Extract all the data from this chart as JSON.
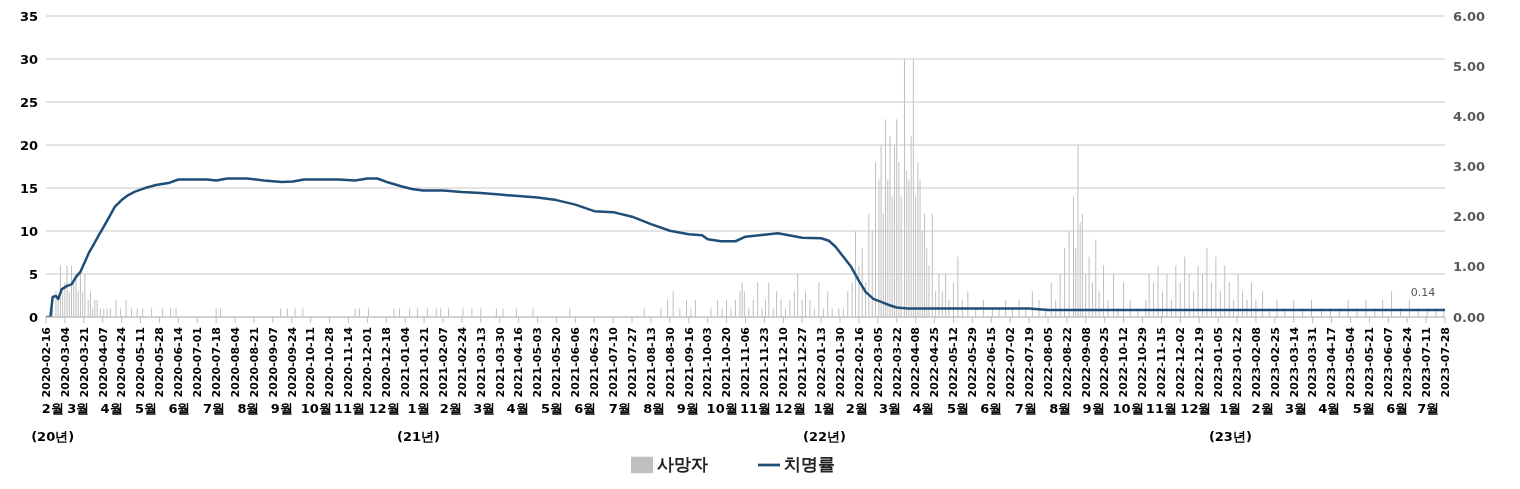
{
  "chart_data": {
    "type": "bar",
    "xlim": [
      "2020-02-16",
      "2023-07-28"
    ],
    "xticks": [
      "2020-02-16",
      "2020-03-04",
      "2020-03-21",
      "2020-04-07",
      "2020-04-24",
      "2020-05-11",
      "2020-05-28",
      "2020-06-14",
      "2020-07-01",
      "2020-07-18",
      "2020-08-04",
      "2020-08-21",
      "2020-09-07",
      "2020-09-24",
      "2020-10-11",
      "2020-10-28",
      "2020-11-14",
      "2020-12-01",
      "2020-12-18",
      "2021-01-04",
      "2021-01-21",
      "2021-02-07",
      "2021-02-24",
      "2021-03-13",
      "2021-03-30",
      "2021-04-16",
      "2021-05-03",
      "2021-05-20",
      "2021-06-06",
      "2021-06-23",
      "2021-07-10",
      "2021-07-27",
      "2021-08-13",
      "2021-08-30",
      "2021-09-16",
      "2021-10-03",
      "2021-10-20",
      "2021-11-06",
      "2021-11-23",
      "2021-12-10",
      "2021-12-27",
      "2022-01-13",
      "2022-01-30",
      "2022-02-16",
      "2022-03-05",
      "2022-03-22",
      "2022-04-08",
      "2022-04-25",
      "2022-05-12",
      "2022-05-29",
      "2022-06-15",
      "2022-07-02",
      "2022-07-19",
      "2022-08-05",
      "2022-08-22",
      "2022-09-08",
      "2022-09-25",
      "2022-10-12",
      "2022-10-29",
      "2022-11-15",
      "2022-12-02",
      "2022-12-19",
      "2023-01-05",
      "2023-01-22",
      "2023-02-08",
      "2023-02-25",
      "2023-03-14",
      "2023-03-31",
      "2023-04-17",
      "2023-05-04",
      "2023-05-21",
      "2023-06-07",
      "2023-06-24",
      "2023-07-11",
      "2023-07-28"
    ],
    "x2lim": [
      "2020-02-16",
      "2023-07-28"
    ],
    "x2ticks": [
      {
        "value": "2020-02-22",
        "label": "2월\n(20년)"
      },
      {
        "value": "2020-03-16",
        "label": "3월"
      },
      {
        "value": "2020-04-15",
        "label": "4월"
      },
      {
        "value": "2020-05-16",
        "label": "5월"
      },
      {
        "value": "2020-06-15",
        "label": "6월"
      },
      {
        "value": "2020-07-16",
        "label": "7월"
      },
      {
        "value": "2020-08-16",
        "label": "8월"
      },
      {
        "value": "2020-09-15",
        "label": "9월"
      },
      {
        "value": "2020-10-16",
        "label": "10월"
      },
      {
        "value": "2020-11-15",
        "label": "11월"
      },
      {
        "value": "2020-12-16",
        "label": "12월"
      },
      {
        "value": "2021-01-16",
        "label": "1월\n(21년)"
      },
      {
        "value": "2021-02-14",
        "label": "2월"
      },
      {
        "value": "2021-03-16",
        "label": "3월"
      },
      {
        "value": "2021-04-15",
        "label": "4월"
      },
      {
        "value": "2021-05-16",
        "label": "5월"
      },
      {
        "value": "2021-06-15",
        "label": "6월"
      },
      {
        "value": "2021-07-16",
        "label": "7월"
      },
      {
        "value": "2021-08-16",
        "label": "8월"
      },
      {
        "value": "2021-09-15",
        "label": "9월"
      },
      {
        "value": "2021-10-16",
        "label": "10월"
      },
      {
        "value": "2021-11-15",
        "label": "11월"
      },
      {
        "value": "2021-12-16",
        "label": "12월"
      },
      {
        "value": "2022-01-16",
        "label": "1월\n(22년)"
      },
      {
        "value": "2022-02-14",
        "label": "2월"
      },
      {
        "value": "2022-03-16",
        "label": "3월"
      },
      {
        "value": "2022-04-15",
        "label": "4월"
      },
      {
        "value": "2022-05-16",
        "label": "5월"
      },
      {
        "value": "2022-06-15",
        "label": "6월"
      },
      {
        "value": "2022-07-16",
        "label": "7월"
      },
      {
        "value": "2022-08-16",
        "label": "8월"
      },
      {
        "value": "2022-09-15",
        "label": "9월"
      },
      {
        "value": "2022-10-16",
        "label": "10월"
      },
      {
        "value": "2022-11-15",
        "label": "11월"
      },
      {
        "value": "2022-12-16",
        "label": "12월"
      },
      {
        "value": "2023-01-16",
        "label": "1월\n(23년)"
      },
      {
        "value": "2023-02-14",
        "label": "2월"
      },
      {
        "value": "2023-03-16",
        "label": "3월"
      },
      {
        "value": "2023-04-15",
        "label": "4월"
      },
      {
        "value": "2023-05-16",
        "label": "5월"
      },
      {
        "value": "2023-06-15",
        "label": "6월"
      },
      {
        "value": "2023-07-13",
        "label": "7월"
      }
    ],
    "ylim": [
      0,
      35
    ],
    "yticks": [
      0,
      5,
      10,
      15,
      20,
      25,
      30,
      35
    ],
    "y2lim": [
      0,
      6
    ],
    "y2ticks": [
      {
        "value": 0,
        "label": "0.00"
      },
      {
        "value": 1,
        "label": "1.00"
      },
      {
        "value": 2,
        "label": "2.00"
      },
      {
        "value": 3,
        "label": "3.00"
      },
      {
        "value": 4,
        "label": "4.00"
      },
      {
        "value": 5,
        "label": "5.00"
      },
      {
        "value": 6,
        "label": "6.00"
      }
    ],
    "grid": "y",
    "legend": "bottom",
    "marker": "none",
    "line_style": "solid",
    "annotations": [
      {
        "text": "0.14",
        "x": "2023-07-28",
        "y": 0.14
      }
    ],
    "series": [
      {
        "name": "사망자",
        "color": "#bfbfbf",
        "x": [
          "2020-02-22",
          "2020-02-25",
          "2020-02-27",
          "2020-02-29",
          "2020-03-02",
          "2020-03-04",
          "2020-03-06",
          "2020-03-08",
          "2020-03-10",
          "2020-03-12",
          "2020-03-14",
          "2020-03-16",
          "2020-03-18",
          "2020-03-20",
          "2020-03-22",
          "2020-03-25",
          "2020-03-27",
          "2020-03-29",
          "2020-03-31",
          "2020-04-02",
          "2020-04-05",
          "2020-04-08",
          "2020-04-11",
          "2020-04-14",
          "2020-04-19",
          "2020-04-23",
          "2020-04-28",
          "2020-05-03",
          "2020-05-08",
          "2020-05-13",
          "2020-05-21",
          "2020-05-31",
          "2020-06-07",
          "2020-06-12",
          "2020-07-18",
          "2020-07-22",
          "2020-09-14",
          "2020-09-20",
          "2020-09-27",
          "2020-10-04",
          "2020-11-20",
          "2020-11-24",
          "2020-12-02",
          "2020-12-25",
          "2020-12-30",
          "2021-01-08",
          "2021-01-15",
          "2021-01-24",
          "2021-02-01",
          "2021-02-05",
          "2021-02-12",
          "2021-02-25",
          "2021-03-05",
          "2021-03-13",
          "2021-03-27",
          "2021-04-02",
          "2021-04-14",
          "2021-04-29",
          "2021-06-01",
          "2021-08-07",
          "2021-08-22",
          "2021-08-28",
          "2021-09-02",
          "2021-09-08",
          "2021-09-14",
          "2021-09-18",
          "2021-09-22",
          "2021-10-06",
          "2021-10-12",
          "2021-10-16",
          "2021-10-20",
          "2021-10-24",
          "2021-10-28",
          "2021-11-01",
          "2021-11-03",
          "2021-11-05",
          "2021-11-09",
          "2021-11-13",
          "2021-11-17",
          "2021-11-21",
          "2021-11-24",
          "2021-11-27",
          "2021-12-01",
          "2021-12-04",
          "2021-12-08",
          "2021-12-12",
          "2021-12-16",
          "2021-12-20",
          "2021-12-23",
          "2021-12-27",
          "2021-12-30",
          "2022-01-03",
          "2022-01-07",
          "2022-01-11",
          "2022-01-15",
          "2022-01-19",
          "2022-01-23",
          "2022-01-29",
          "2022-02-02",
          "2022-02-06",
          "2022-02-10",
          "2022-02-13",
          "2022-02-16",
          "2022-02-19",
          "2022-02-22",
          "2022-02-25",
          "2022-02-28",
          "2022-03-03",
          "2022-03-06",
          "2022-03-08",
          "2022-03-10",
          "2022-03-12",
          "2022-03-14",
          "2022-03-16",
          "2022-03-18",
          "2022-03-20",
          "2022-03-22",
          "2022-03-24",
          "2022-03-26",
          "2022-03-29",
          "2022-03-31",
          "2022-04-02",
          "2022-04-04",
          "2022-04-06",
          "2022-04-08",
          "2022-04-10",
          "2022-04-12",
          "2022-04-14",
          "2022-04-16",
          "2022-04-18",
          "2022-04-20",
          "2022-04-23",
          "2022-04-26",
          "2022-04-29",
          "2022-05-02",
          "2022-05-05",
          "2022-05-08",
          "2022-05-12",
          "2022-05-16",
          "2022-05-20",
          "2022-05-25",
          "2022-06-01",
          "2022-06-08",
          "2022-06-16",
          "2022-06-22",
          "2022-06-28",
          "2022-07-04",
          "2022-07-10",
          "2022-07-16",
          "2022-07-22",
          "2022-07-28",
          "2022-08-03",
          "2022-08-08",
          "2022-08-12",
          "2022-08-16",
          "2022-08-20",
          "2022-08-24",
          "2022-08-28",
          "2022-08-30",
          "2022-09-01",
          "2022-09-03",
          "2022-09-05",
          "2022-09-08",
          "2022-09-11",
          "2022-09-14",
          "2022-09-17",
          "2022-09-20",
          "2022-09-24",
          "2022-09-28",
          "2022-10-03",
          "2022-10-07",
          "2022-10-12",
          "2022-10-18",
          "2022-10-25",
          "2022-11-01",
          "2022-11-04",
          "2022-11-08",
          "2022-11-12",
          "2022-11-16",
          "2022-11-20",
          "2022-11-24",
          "2022-11-28",
          "2022-12-02",
          "2022-12-06",
          "2022-12-10",
          "2022-12-14",
          "2022-12-18",
          "2022-12-22",
          "2022-12-26",
          "2022-12-30",
          "2023-01-03",
          "2023-01-07",
          "2023-01-11",
          "2023-01-15",
          "2023-01-19",
          "2023-01-23",
          "2023-01-27",
          "2023-01-31",
          "2023-02-04",
          "2023-02-08",
          "2023-02-14",
          "2023-02-20",
          "2023-02-27",
          "2023-03-06",
          "2023-03-14",
          "2023-03-22",
          "2023-03-30",
          "2023-04-08",
          "2023-04-16",
          "2023-04-24",
          "2023-05-02",
          "2023-05-10",
          "2023-05-18",
          "2023-05-26",
          "2023-06-02",
          "2023-06-10",
          "2023-06-18",
          "2023-06-26",
          "2023-07-04",
          "2023-07-12",
          "2023-07-20",
          "2023-07-27"
        ],
        "values": [
          1,
          3,
          2,
          6,
          3,
          4,
          6,
          3,
          6,
          4,
          5,
          3,
          5,
          3,
          5,
          2,
          3,
          1,
          2,
          2,
          1,
          1,
          1,
          1,
          2,
          1,
          2,
          1,
          1,
          1,
          1,
          1,
          1,
          1,
          1,
          1,
          1,
          1,
          1,
          1,
          1,
          1,
          1,
          1,
          1,
          1,
          1,
          1,
          1,
          1,
          1,
          1,
          1,
          1,
          1,
          1,
          1,
          1,
          1,
          1,
          1,
          2,
          3,
          1,
          2,
          1,
          2,
          1,
          2,
          1,
          2,
          1,
          2,
          3,
          4,
          3,
          1,
          2,
          4,
          1,
          2,
          4,
          1,
          3,
          2,
          1,
          2,
          3,
          5,
          2,
          3,
          2,
          1,
          4,
          1,
          3,
          1,
          1,
          1,
          3,
          4,
          10,
          6,
          8,
          4,
          12,
          10,
          18,
          16,
          20,
          12,
          23,
          16,
          21,
          14,
          20,
          23,
          18,
          14,
          30,
          17,
          16,
          21,
          30,
          14,
          18,
          16,
          10,
          12,
          8,
          6,
          12,
          3,
          5,
          3,
          5,
          2,
          4,
          7,
          2,
          3,
          1,
          2,
          1,
          1,
          2,
          1,
          2,
          1,
          3,
          2,
          1,
          4,
          2,
          5,
          8,
          10,
          14,
          8,
          20,
          11,
          12,
          5,
          7,
          4,
          9,
          3,
          6,
          2,
          5,
          1,
          4,
          2,
          1,
          2,
          5,
          4,
          6,
          3,
          5,
          2,
          6,
          4,
          7,
          5,
          3,
          6,
          5,
          8,
          4,
          7,
          3,
          6,
          4,
          2,
          5,
          3,
          2,
          4,
          2,
          3,
          1,
          2,
          1,
          2,
          1,
          2,
          1,
          1,
          1,
          2,
          1,
          2,
          1,
          2,
          3,
          1,
          2,
          1,
          1,
          1,
          1
        ]
      },
      {
        "name": "치명률",
        "type": "line",
        "axis": "y2",
        "color": "#1f4e79",
        "x": [
          "2020-02-16",
          "2020-02-20",
          "2020-02-22",
          "2020-02-25",
          "2020-02-27",
          "2020-03-01",
          "2020-03-06",
          "2020-03-10",
          "2020-03-14",
          "2020-03-18",
          "2020-03-22",
          "2020-03-26",
          "2020-03-30",
          "2020-04-04",
          "2020-04-08",
          "2020-04-13",
          "2020-04-18",
          "2020-04-24",
          "2020-04-30",
          "2020-05-06",
          "2020-05-15",
          "2020-05-25",
          "2020-06-05",
          "2020-06-14",
          "2020-07-10",
          "2020-07-18",
          "2020-07-28",
          "2020-08-15",
          "2020-08-30",
          "2020-09-15",
          "2020-09-25",
          "2020-10-05",
          "2020-11-05",
          "2020-11-20",
          "2020-12-01",
          "2020-12-10",
          "2020-12-20",
          "2021-01-01",
          "2021-01-10",
          "2021-01-20",
          "2021-02-07",
          "2021-02-24",
          "2021-03-13",
          "2021-03-30",
          "2021-04-16",
          "2021-05-03",
          "2021-05-20",
          "2021-06-06",
          "2021-06-23",
          "2021-07-10",
          "2021-07-27",
          "2021-08-13",
          "2021-08-30",
          "2021-09-16",
          "2021-09-28",
          "2021-10-03",
          "2021-10-15",
          "2021-10-28",
          "2021-11-06",
          "2021-11-23",
          "2021-12-05",
          "2021-12-15",
          "2021-12-27",
          "2022-01-13",
          "2022-01-20",
          "2022-01-26",
          "2022-02-02",
          "2022-02-09",
          "2022-02-16",
          "2022-02-22",
          "2022-03-01",
          "2022-03-08",
          "2022-03-15",
          "2022-03-22",
          "2022-04-01",
          "2022-05-12",
          "2022-06-15",
          "2022-07-19",
          "2022-08-05",
          "2022-09-08",
          "2023-03-31",
          "2023-07-28"
        ],
        "values": [
          0,
          0,
          0.4,
          0.42,
          0.36,
          0.55,
          0.62,
          0.65,
          0.8,
          0.9,
          1.1,
          1.3,
          1.45,
          1.65,
          1.8,
          2.0,
          2.2,
          2.33,
          2.43,
          2.5,
          2.57,
          2.63,
          2.67,
          2.74,
          2.74,
          2.72,
          2.76,
          2.76,
          2.72,
          2.69,
          2.7,
          2.74,
          2.74,
          2.72,
          2.76,
          2.76,
          2.68,
          2.6,
          2.55,
          2.52,
          2.52,
          2.49,
          2.47,
          2.44,
          2.41,
          2.38,
          2.33,
          2.24,
          2.11,
          2.09,
          2.0,
          1.85,
          1.72,
          1.65,
          1.63,
          1.55,
          1.51,
          1.51,
          1.6,
          1.64,
          1.67,
          1.63,
          1.58,
          1.57,
          1.52,
          1.4,
          1.2,
          1.0,
          0.72,
          0.5,
          0.36,
          0.3,
          0.24,
          0.19,
          0.17,
          0.17,
          0.17,
          0.17,
          0.14,
          0.14,
          0.14,
          0.14
        ]
      }
    ]
  }
}
